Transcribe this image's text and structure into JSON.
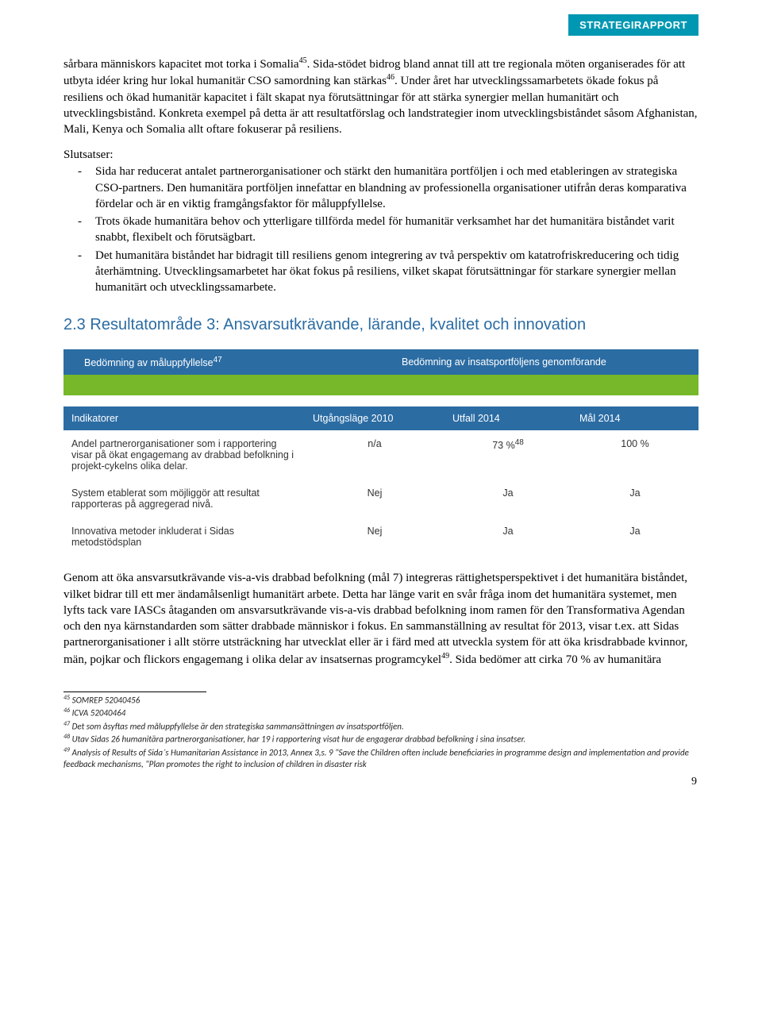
{
  "header": {
    "label": "STRATEGIRAPPORT"
  },
  "para1_a": "sårbara människors kapacitet mot torka i Somalia",
  "para1_sup1": "45",
  "para1_b": ". Sida-stödet bidrog bland annat till att tre regionala möten organiserades för att utbyta idéer kring hur lokal humanitär CSO samordning kan stärkas",
  "para1_sup2": "46",
  "para1_c": ". Under året har utvecklingssamarbetets ökade fokus på resiliens och ökad humanitär kapacitet i fält skapat nya förutsättningar för att stärka synergier mellan humanitärt och utvecklingsbistånd. Konkreta exempel på detta är att resultatförslag och landstrategier inom utvecklingsbiståndet såsom Afghanistan, Mali, Kenya och Somalia allt oftare fokuserar på resiliens.",
  "slutsatser_label": "Slutsatser:",
  "slutsatser": [
    "Sida har reducerat antalet partnerorganisationer och stärkt den humanitära portföljen i och med etableringen av strategiska CSO-partners. Den humanitära portföljen innefattar en blandning av professionella organisationer utifrån deras komparativa fördelar och är en viktig framgångsfaktor för måluppfyllelse.",
    "Trots ökade humanitära behov och ytterligare tillförda medel för humanitär verksamhet har det humanitära biståndet  varit snabbt, flexibelt och förutsägbart.",
    "Det humanitära biståndet har bidragit till resiliens genom integrering av två perspektiv om katatrofriskreducering och tidig återhämtning. Utvecklingsamarbetet har ökat fokus på resiliens, vilket skapat förutsättningar för starkare synergier mellan humanitärt och utvecklingssamarbete."
  ],
  "section": {
    "num": "2.3",
    "title": "Resultatområde 3: Ansvarsutkrävande, lärande, kvalitet och innovation"
  },
  "assess": {
    "left_a": "Bedömning av måluppfyllelse",
    "left_sup": "47",
    "right": "Bedömning av insatsportföljens genomförande"
  },
  "ind_table": {
    "headers": {
      "c1": "Indikatorer",
      "c2": "Utgångsläge 2010",
      "c3": "Utfall 2014",
      "c4": "Mål 2014"
    },
    "rows": [
      {
        "c1": "Andel partnerorganisationer som i rapportering visar på ökat engagemang av drabbad befolkning i projekt-cykelns olika delar.",
        "c2": "n/a",
        "c3": "73 %",
        "c3_sup": "48",
        "c4": "100 %"
      },
      {
        "c1": "System etablerat som möjliggör att resultat rapporteras på aggregerad nivå.",
        "c2": "Nej",
        "c3": "Ja",
        "c3_sup": "",
        "c4": "Ja"
      },
      {
        "c1": "Innovativa metoder inkluderat i Sidas metodstödsplan",
        "c2": "Nej",
        "c3": "Ja",
        "c3_sup": "",
        "c4": "Ja"
      }
    ]
  },
  "para2_a": "Genom att öka ansvarsutkrävande vis-a-vis drabbad befolkning (mål 7) integreras rättighetsperspektivet i det humanitära biståndet, vilket bidrar till ett mer ändamålsenligt humanitärt arbete. Detta har länge varit en svår fråga inom det humanitära systemet, men lyfts tack vare IASCs åtaganden om ansvarsutkrävande vis-a-vis drabbad befolkning inom ramen för den Transformativa Agendan och den nya kärnstandarden som sätter drabbade människor i fokus. En sammanställning av resultat för 2013, visar t.ex. att Sidas partnerorganisationer i allt större utsträckning har utvecklat eller är i färd med att utveckla system för att öka krisdrabbade kvinnor, män, pojkar och flickors engagemang i olika delar av insatsernas programcykel",
  "para2_sup": "49",
  "para2_b": ". Sida bedömer att cirka 70 % av humanitära",
  "footnotes": [
    {
      "n": "45",
      "t": "SOMREP 52040456"
    },
    {
      "n": "46",
      "t": "ICVA 52040464"
    },
    {
      "n": "47",
      "t": "Det som åsyftas med måluppfyllelse är den strategiska sammansättningen av insatsportföljen."
    },
    {
      "n": "48",
      "t": "Utav Sidas 26 humanitära partnerorganisationer, har 19 i rapportering visat hur de engagerar drabbad befolkning i sina insatser."
    },
    {
      "n": "49",
      "t": "Analysis of Results of Sida´s Humanitarian Assistance in 2013, Annex 3,s. 9 \"Save the Children often include beneficiaries in programme design and implementation and provide feedback mechanisms, \"Plan promotes the right to inclusion of children in disaster risk"
    }
  ],
  "page_number": "9"
}
